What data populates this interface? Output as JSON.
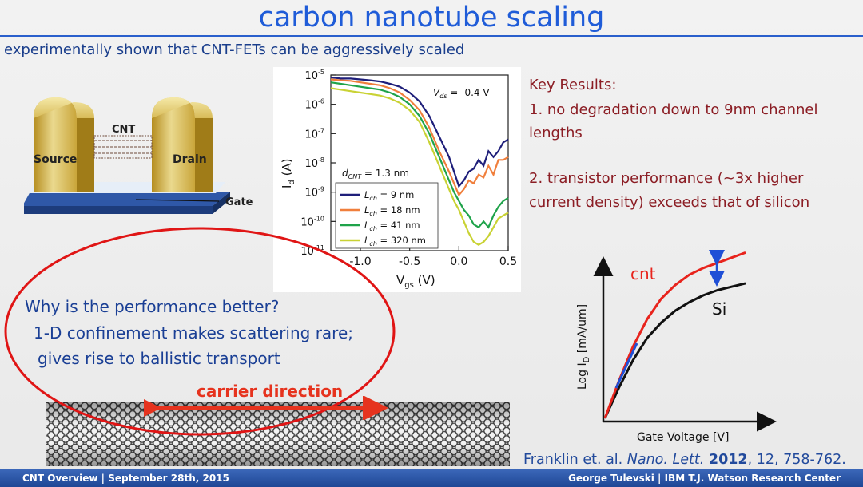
{
  "slide": {
    "title": "carbon nanotube scaling",
    "subtitle": "experimentally shown that CNT-FETs can be aggressively scaled"
  },
  "device_diagram": {
    "cnt_label": "CNT",
    "source_label": "Source",
    "drain_label": "Drain",
    "gate_label": "Gate"
  },
  "key_results": {
    "heading": "Key Results:",
    "item1_line1": "1.  no degradation down to 9nm channel",
    "item1_line2": "lengths",
    "item2_line1": "2.  transistor performance (~3x higher",
    "item2_line2": "current density) exceeds that of silicon"
  },
  "callout": {
    "question": "Why is the performance better?",
    "answer_line1": "1-D confinement makes scattering rare;",
    "answer_line2": "gives rise to ballistic transport",
    "carrier_label": "carrier direction"
  },
  "citation": {
    "authors": "Franklin et. al. ",
    "journal": "Nano. Lett.",
    "year": "2012",
    "rest": ", 12, 758-762."
  },
  "footer": {
    "left": "CNT Overview | September 28th, 2015",
    "right": "George Tulevski | IBM T.J. Watson Research Center"
  },
  "chart_data": [
    {
      "type": "line",
      "yscale": "log",
      "xlabel": "V",
      "xlabel_sub": "gs",
      "xlabel_unit": " (V)",
      "ylabel": "I",
      "ylabel_sub": "d",
      "ylabel_unit": " (A)",
      "xlim": [
        -1.3,
        0.5
      ],
      "ylim": [
        1e-11,
        1e-05
      ],
      "xticks": [
        "-1.0",
        "-0.5",
        "0.0",
        "0.5"
      ],
      "xtick_values": [
        -1.0,
        -0.5,
        0.0,
        0.5
      ],
      "ytick_values": [
        -5,
        -6,
        -7,
        -8,
        -9,
        -10,
        -11
      ],
      "annotation_vds": "V",
      "annotation_vds_sub": "ds",
      "annotation_vds_value": " = -0.4 V",
      "annotation_d": "d",
      "annotation_d_sub": "CNT",
      "annotation_d_value": " = 1.3 nm",
      "series": [
        {
          "name": "L",
          "name_sub": "ch",
          "name_value": " = 9 nm",
          "color": "#1f1f7a",
          "x": [
            -1.3,
            -1.2,
            -1.1,
            -1.0,
            -0.9,
            -0.8,
            -0.7,
            -0.6,
            -0.5,
            -0.4,
            -0.3,
            -0.2,
            -0.1,
            -0.05,
            0.0,
            0.05,
            0.1,
            0.15,
            0.2,
            0.25,
            0.3,
            0.35,
            0.4,
            0.45,
            0.5
          ],
          "y": [
            -5.08,
            -5.12,
            -5.12,
            -5.15,
            -5.18,
            -5.22,
            -5.3,
            -5.4,
            -5.6,
            -5.9,
            -6.4,
            -7.1,
            -7.8,
            -8.3,
            -8.8,
            -8.6,
            -8.3,
            -8.2,
            -7.9,
            -8.1,
            -7.6,
            -7.8,
            -7.6,
            -7.3,
            -7.2
          ]
        },
        {
          "name": "L",
          "name_sub": "ch",
          "name_value": " = 18 nm",
          "color": "#f07f3c",
          "x": [
            -1.3,
            -1.2,
            -1.1,
            -1.0,
            -0.9,
            -0.8,
            -0.7,
            -0.6,
            -0.5,
            -0.4,
            -0.3,
            -0.2,
            -0.1,
            -0.05,
            0.0,
            0.05,
            0.1,
            0.15,
            0.2,
            0.25,
            0.3,
            0.35,
            0.4,
            0.45,
            0.5
          ],
          "y": [
            -5.15,
            -5.18,
            -5.2,
            -5.25,
            -5.3,
            -5.35,
            -5.45,
            -5.6,
            -5.85,
            -6.2,
            -6.8,
            -7.6,
            -8.3,
            -8.7,
            -9.1,
            -8.9,
            -8.6,
            -8.7,
            -8.4,
            -8.5,
            -8.1,
            -8.4,
            -7.9,
            -7.9,
            -7.8
          ]
        },
        {
          "name": "L",
          "name_sub": "ch",
          "name_value": " = 41 nm",
          "color": "#1fa34a",
          "x": [
            -1.3,
            -1.2,
            -1.1,
            -1.0,
            -0.9,
            -0.8,
            -0.7,
            -0.6,
            -0.5,
            -0.4,
            -0.3,
            -0.2,
            -0.1,
            -0.05,
            0.0,
            0.05,
            0.1,
            0.15,
            0.2,
            0.25,
            0.3,
            0.35,
            0.4,
            0.45,
            0.5
          ],
          "y": [
            -5.25,
            -5.3,
            -5.35,
            -5.4,
            -5.45,
            -5.5,
            -5.6,
            -5.75,
            -6.0,
            -6.4,
            -7.0,
            -7.8,
            -8.6,
            -9.0,
            -9.3,
            -9.6,
            -9.8,
            -10.1,
            -10.2,
            -10.0,
            -10.2,
            -9.8,
            -9.5,
            -9.3,
            -9.2
          ]
        },
        {
          "name": "L",
          "name_sub": "ch",
          "name_value": " = 320 nm",
          "color": "#c9d234",
          "x": [
            -1.3,
            -1.2,
            -1.1,
            -1.0,
            -0.9,
            -0.8,
            -0.7,
            -0.6,
            -0.5,
            -0.4,
            -0.3,
            -0.2,
            -0.1,
            -0.05,
            0.0,
            0.05,
            0.1,
            0.15,
            0.2,
            0.25,
            0.3,
            0.35,
            0.4,
            0.45,
            0.5
          ],
          "y": [
            -5.45,
            -5.5,
            -5.55,
            -5.6,
            -5.65,
            -5.7,
            -5.8,
            -5.95,
            -6.2,
            -6.6,
            -7.3,
            -8.1,
            -8.9,
            -9.3,
            -9.6,
            -10.0,
            -10.4,
            -10.7,
            -10.8,
            -10.7,
            -10.5,
            -10.2,
            -9.9,
            -9.8,
            -9.7
          ]
        }
      ]
    },
    {
      "type": "line",
      "xlabel": "Gate Voltage [V]",
      "ylabel": "Log I",
      "ylabel_sub": "D",
      "ylabel_unit": " [mA/um]",
      "series": [
        {
          "name": "cnt",
          "color": "#e8231c",
          "x": [
            0.0,
            0.1,
            0.2,
            0.3,
            0.4,
            0.5,
            0.6,
            0.7,
            0.8,
            0.9,
            1.0
          ],
          "y": [
            0.0,
            0.22,
            0.42,
            0.58,
            0.7,
            0.78,
            0.84,
            0.88,
            0.91,
            0.94,
            0.97
          ]
        },
        {
          "name": "Si",
          "color": "#111111",
          "x": [
            0.0,
            0.1,
            0.2,
            0.3,
            0.4,
            0.5,
            0.6,
            0.7,
            0.8,
            0.9,
            1.0
          ],
          "y": [
            0.0,
            0.18,
            0.34,
            0.47,
            0.56,
            0.63,
            0.68,
            0.72,
            0.75,
            0.77,
            0.79
          ]
        }
      ]
    }
  ]
}
